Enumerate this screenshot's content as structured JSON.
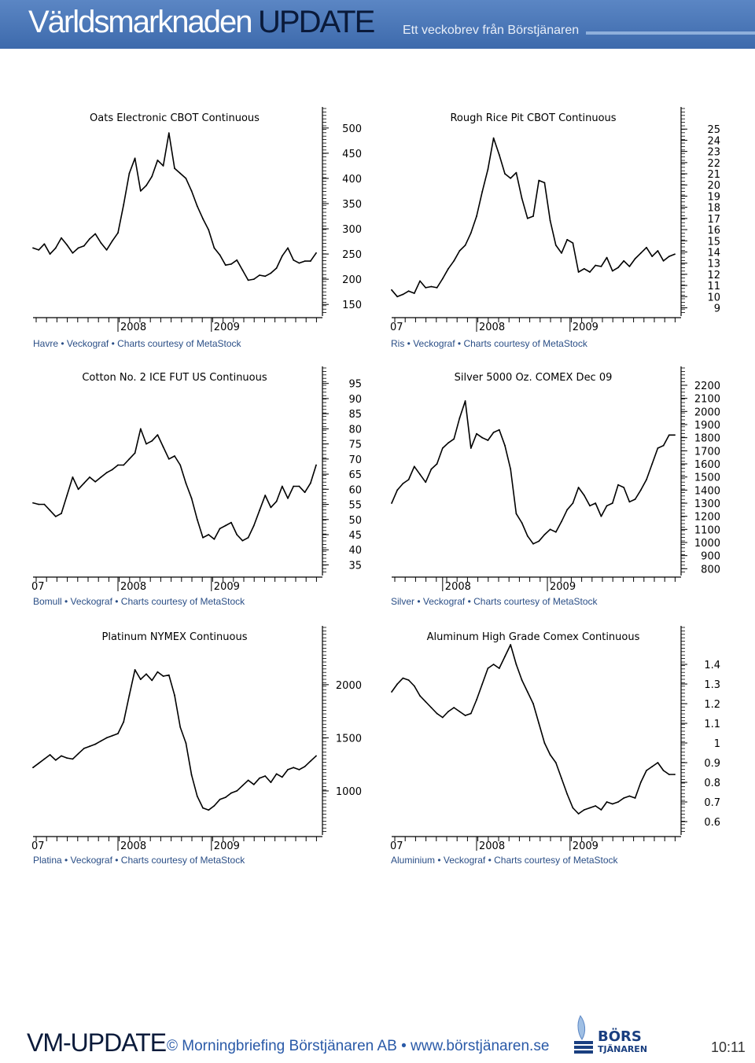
{
  "header": {
    "title": "Världsmarknaden",
    "update": "UPDATE",
    "subtitle": "Ett veckobrev från Börstjänaren"
  },
  "colors": {
    "header_bg": "#4a78b8",
    "caption": "#2a4e86",
    "line": "#000000",
    "footer_link": "#2a5aa8"
  },
  "chart_data": [
    {
      "type": "line",
      "title": "Oats Electronic CBOT Continuous",
      "caption": "Havre • Veckograf • Charts courtesy of MetaStock",
      "x_tick_labels": [
        "2008",
        "2009"
      ],
      "y_ticks": [
        150,
        200,
        250,
        300,
        350,
        400,
        450,
        500
      ],
      "ylim": [
        130,
        520
      ],
      "x": [
        0,
        2,
        4,
        6,
        8,
        10,
        12,
        14,
        16,
        18,
        20,
        22,
        24,
        26,
        28,
        30,
        32,
        34,
        36,
        38,
        40,
        42,
        44,
        46,
        48,
        50,
        52,
        54,
        56,
        58,
        60,
        62,
        64,
        66,
        68,
        70,
        72,
        74,
        76,
        78,
        80,
        82,
        84,
        86,
        88,
        90,
        92,
        94,
        96,
        98,
        100
      ],
      "values": [
        262,
        258,
        270,
        250,
        262,
        282,
        268,
        252,
        262,
        266,
        280,
        290,
        272,
        258,
        276,
        292,
        348,
        410,
        440,
        375,
        386,
        404,
        436,
        425,
        490,
        420,
        410,
        400,
        375,
        345,
        320,
        298,
        262,
        248,
        228,
        230,
        238,
        218,
        198,
        200,
        208,
        206,
        212,
        222,
        246,
        262,
        238,
        232,
        236,
        236,
        252
      ]
    },
    {
      "type": "line",
      "title": "Rough Rice Pit CBOT Continuous",
      "caption": "Ris • Veckograf • Charts courtesy of MetaStock",
      "x_tick_labels": [
        "07",
        "2008",
        "2009"
      ],
      "y_ticks": [
        9,
        10,
        11,
        12,
        13,
        14,
        15,
        16,
        17,
        18,
        19,
        20,
        21,
        22,
        23,
        24,
        25
      ],
      "ylim": [
        8.4,
        26
      ],
      "x": [
        0,
        2,
        4,
        6,
        8,
        10,
        12,
        14,
        16,
        18,
        20,
        22,
        24,
        26,
        28,
        30,
        32,
        34,
        36,
        38,
        40,
        42,
        44,
        46,
        48,
        50,
        52,
        54,
        56,
        58,
        60,
        62,
        64,
        66,
        68,
        70,
        72,
        74,
        76,
        78,
        80,
        82,
        84,
        86,
        88,
        90,
        92,
        94,
        96,
        98,
        100
      ],
      "values": [
        10.6,
        10.0,
        10.2,
        10.5,
        10.3,
        11.4,
        10.8,
        10.9,
        10.8,
        11.6,
        12.5,
        13.2,
        14.1,
        14.6,
        15.7,
        17.2,
        19.4,
        21.4,
        24.2,
        22.7,
        21.0,
        20.6,
        21.1,
        18.8,
        17.0,
        17.2,
        20.4,
        20.2,
        16.8,
        14.6,
        13.9,
        15.1,
        14.8,
        12.2,
        12.5,
        12.2,
        12.8,
        12.7,
        13.5,
        12.3,
        12.6,
        13.2,
        12.7,
        13.4,
        13.9,
        14.4,
        13.6,
        14.1,
        13.2,
        13.6,
        13.8
      ]
    },
    {
      "type": "line",
      "title": "Cotton No. 2 ICE FUT US Continuous",
      "caption": "Bomull • Veckograf • Charts courtesy of MetaStock",
      "x_tick_labels": [
        "07",
        "2008",
        "2009"
      ],
      "y_ticks": [
        35,
        40,
        45,
        50,
        55,
        60,
        65,
        70,
        75,
        80,
        85,
        90,
        95
      ],
      "ylim": [
        32,
        97
      ],
      "x": [
        0,
        2,
        4,
        6,
        8,
        10,
        12,
        14,
        16,
        18,
        20,
        22,
        24,
        26,
        28,
        30,
        32,
        34,
        36,
        38,
        40,
        42,
        44,
        46,
        48,
        50,
        52,
        54,
        56,
        58,
        60,
        62,
        64,
        66,
        68,
        70,
        72,
        74,
        76,
        78,
        80,
        82,
        84,
        86,
        88,
        90,
        92,
        94,
        96,
        98,
        100
      ],
      "values": [
        55.5,
        55,
        55,
        53,
        51,
        52,
        58,
        64,
        60,
        62,
        64,
        62.5,
        64,
        65.5,
        66.5,
        68,
        68,
        70,
        72,
        80,
        75,
        76,
        78,
        74,
        70,
        71,
        68,
        62,
        57,
        50,
        44,
        45,
        43.5,
        47,
        48,
        49,
        45,
        43,
        44,
        48,
        53,
        58,
        54,
        56,
        61,
        57,
        61,
        61,
        59,
        62,
        68
      ]
    },
    {
      "type": "line",
      "title": "Silver 5000 Oz. COMEX Dec 09",
      "caption": "Silver • Veckograf • Charts courtesy of MetaStock",
      "x_tick_labels": [
        "2008",
        "2009"
      ],
      "y_ticks": [
        800,
        900,
        1000,
        1100,
        1200,
        1300,
        1400,
        1500,
        1600,
        1700,
        1800,
        1900,
        2000,
        2100,
        2200
      ],
      "ylim": [
        760,
        2260
      ],
      "x": [
        0,
        2,
        4,
        6,
        8,
        10,
        12,
        14,
        16,
        18,
        20,
        22,
        24,
        26,
        28,
        30,
        32,
        34,
        36,
        38,
        40,
        42,
        44,
        46,
        48,
        50,
        52,
        54,
        56,
        58,
        60,
        62,
        64,
        66,
        68,
        70,
        72,
        74,
        76,
        78,
        80,
        82,
        84,
        86,
        88,
        90,
        92,
        94,
        96,
        98,
        100
      ],
      "values": [
        1300,
        1400,
        1450,
        1480,
        1580,
        1520,
        1460,
        1560,
        1600,
        1720,
        1760,
        1790,
        1950,
        2080,
        1720,
        1830,
        1800,
        1780,
        1840,
        1860,
        1740,
        1560,
        1220,
        1150,
        1050,
        990,
        1010,
        1060,
        1100,
        1080,
        1160,
        1250,
        1300,
        1420,
        1360,
        1280,
        1300,
        1200,
        1280,
        1300,
        1440,
        1420,
        1310,
        1330,
        1400,
        1480,
        1600,
        1720,
        1740,
        1820,
        1820
      ]
    },
    {
      "type": "line",
      "title": "Platinum NYMEX Continuous",
      "caption": "Platina • Veckograf • Charts courtesy of MetaStock",
      "x_tick_labels": [
        "07",
        "2008",
        "2009"
      ],
      "y_ticks": [
        1000,
        1500,
        2000
      ],
      "ylim": [
        600,
        2450
      ],
      "x": [
        0,
        2,
        4,
        6,
        8,
        10,
        12,
        14,
        16,
        18,
        20,
        22,
        24,
        26,
        28,
        30,
        32,
        34,
        36,
        38,
        40,
        42,
        44,
        46,
        48,
        50,
        52,
        54,
        56,
        58,
        60,
        62,
        64,
        66,
        68,
        70,
        72,
        74,
        76,
        78,
        80,
        82,
        84,
        86,
        88,
        90,
        92,
        94,
        96,
        98,
        100
      ],
      "values": [
        1220,
        1260,
        1300,
        1340,
        1290,
        1330,
        1310,
        1300,
        1350,
        1400,
        1420,
        1440,
        1470,
        1500,
        1520,
        1540,
        1650,
        1900,
        2140,
        2050,
        2100,
        2040,
        2120,
        2080,
        2090,
        1900,
        1600,
        1450,
        1150,
        950,
        840,
        820,
        860,
        920,
        940,
        980,
        1000,
        1050,
        1100,
        1060,
        1120,
        1140,
        1080,
        1160,
        1130,
        1200,
        1220,
        1200,
        1230,
        1280,
        1330
      ]
    },
    {
      "type": "line",
      "title": "Aluminum High Grade Comex Continuous",
      "caption": "Aluminium • Veckograf • Charts courtesy of MetaStock",
      "x_tick_labels": [
        "07",
        "2008",
        "2009"
      ],
      "y_ticks": [
        0.6,
        0.7,
        0.8,
        0.9,
        1.0,
        1.1,
        1.2,
        1.3,
        1.4
      ],
      "ylim": [
        0.54,
        1.54
      ],
      "x": [
        0,
        2,
        4,
        6,
        8,
        10,
        12,
        14,
        16,
        18,
        20,
        22,
        24,
        26,
        28,
        30,
        32,
        34,
        36,
        38,
        40,
        42,
        44,
        46,
        48,
        50,
        52,
        54,
        56,
        58,
        60,
        62,
        64,
        66,
        68,
        70,
        72,
        74,
        76,
        78,
        80,
        82,
        84,
        86,
        88,
        90,
        92,
        94,
        96,
        98,
        100
      ],
      "values": [
        1.26,
        1.3,
        1.33,
        1.32,
        1.29,
        1.24,
        1.21,
        1.18,
        1.15,
        1.13,
        1.16,
        1.18,
        1.16,
        1.14,
        1.15,
        1.22,
        1.3,
        1.38,
        1.4,
        1.38,
        1.44,
        1.5,
        1.4,
        1.32,
        1.26,
        1.2,
        1.1,
        1.0,
        0.94,
        0.9,
        0.82,
        0.74,
        0.67,
        0.64,
        0.66,
        0.67,
        0.68,
        0.66,
        0.7,
        0.69,
        0.7,
        0.72,
        0.73,
        0.72,
        0.8,
        0.86,
        0.88,
        0.9,
        0.86,
        0.84,
        0.84
      ]
    }
  ],
  "footer": {
    "vm_update": "VM-UPDATE",
    "copyright": "© Morningbriefing Börstjänaren AB • www.börstjänaren.se",
    "logo_top": "BÖRS",
    "logo_bottom": "TJÄNAREN",
    "time": "10:11"
  }
}
